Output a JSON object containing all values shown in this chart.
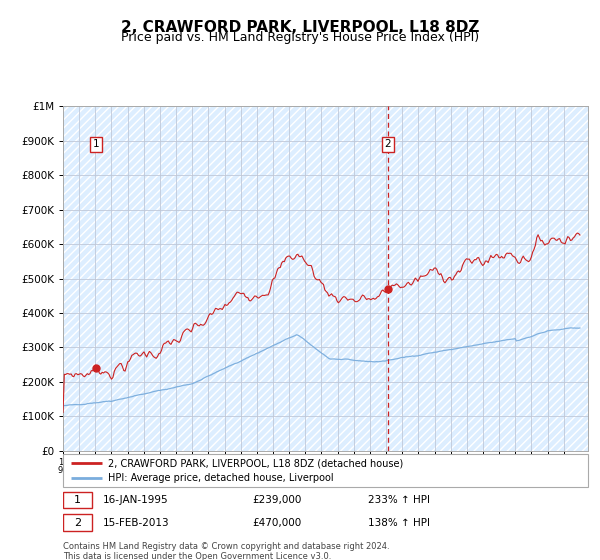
{
  "title": "2, CRAWFORD PARK, LIVERPOOL, L18 8DZ",
  "subtitle": "Price paid vs. HM Land Registry's House Price Index (HPI)",
  "ylabel_ticks": [
    "£0",
    "£100K",
    "£200K",
    "£300K",
    "£400K",
    "£500K",
    "£600K",
    "£700K",
    "£800K",
    "£900K",
    "£1M"
  ],
  "ytick_values": [
    0,
    100000,
    200000,
    300000,
    400000,
    500000,
    600000,
    700000,
    800000,
    900000,
    1000000
  ],
  "ylim": [
    0,
    1000000
  ],
  "sale1_date": "16-JAN-1995",
  "sale1_price": 239000,
  "sale1_hpi": "233%",
  "sale2_date": "15-FEB-2013",
  "sale2_price": 470000,
  "sale2_hpi": "138%",
  "legend_line1": "2, CRAWFORD PARK, LIVERPOOL, L18 8DZ (detached house)",
  "legend_line2": "HPI: Average price, detached house, Liverpool",
  "footnote": "Contains HM Land Registry data © Crown copyright and database right 2024.\nThis data is licensed under the Open Government Licence v3.0.",
  "line_color": "#cc2222",
  "hpi_color": "#7aaddd",
  "background_color": "#ddeeff",
  "grid_color": "#c0c8d8",
  "sale1_x": 1995.04,
  "sale2_x": 2013.12,
  "xlim_left": 1993.0,
  "xlim_right": 2025.5,
  "title_fontsize": 11,
  "subtitle_fontsize": 9
}
